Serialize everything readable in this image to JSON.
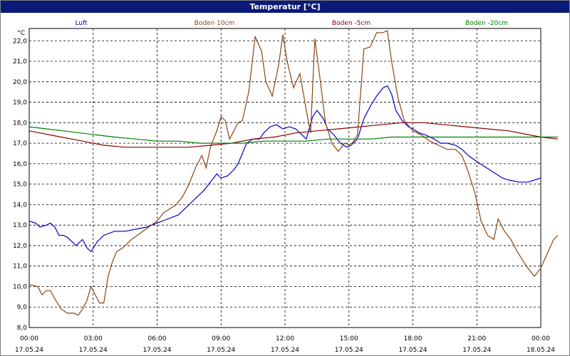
{
  "window": {
    "title": "Temperatur [°C]"
  },
  "chart_data": {
    "type": "line",
    "title": "Temperatur [°C]",
    "ylabel": "°C",
    "ylim": [
      8.0,
      22.6
    ],
    "y_ticks": [
      "8,0",
      "9,0",
      "10,0",
      "11,0",
      "12,0",
      "13,0",
      "14,0",
      "15,0",
      "16,0",
      "17,0",
      "18,0",
      "19,0",
      "20,0",
      "21,0",
      "22,0"
    ],
    "x_ticks": [
      {
        "time": "00:00",
        "date": "17.05.24"
      },
      {
        "time": "03:00",
        "date": "17.05.24"
      },
      {
        "time": "06:00",
        "date": "17.05.24"
      },
      {
        "time": "09:00",
        "date": "17.05.24"
      },
      {
        "time": "12:00",
        "date": "17.05.24"
      },
      {
        "time": "15:00",
        "date": "17.05.24"
      },
      {
        "time": "18:00",
        "date": "17.05.24"
      },
      {
        "time": "21:00",
        "date": "17.05.24"
      },
      {
        "time": "00:00",
        "date": "18.05.24"
      }
    ],
    "x_unit": "hours",
    "xlim": [
      0,
      24
    ],
    "grid": true,
    "legend_position": "top",
    "series": [
      {
        "name": "Luft",
        "color": "#0000cc",
        "points": [
          [
            0,
            13.2
          ],
          [
            0.3,
            13.1
          ],
          [
            0.5,
            12.9
          ],
          [
            0.8,
            13.0
          ],
          [
            1.0,
            13.1
          ],
          [
            1.2,
            12.9
          ],
          [
            1.4,
            12.5
          ],
          [
            1.6,
            12.5
          ],
          [
            1.8,
            12.4
          ],
          [
            2.0,
            12.2
          ],
          [
            2.2,
            12.0
          ],
          [
            2.5,
            12.3
          ],
          [
            2.7,
            11.9
          ],
          [
            2.9,
            11.7
          ],
          [
            3.2,
            12.2
          ],
          [
            3.5,
            12.5
          ],
          [
            4.0,
            12.7
          ],
          [
            4.5,
            12.7
          ],
          [
            5.0,
            12.8
          ],
          [
            5.5,
            12.9
          ],
          [
            6.0,
            13.1
          ],
          [
            6.5,
            13.3
          ],
          [
            7.0,
            13.5
          ],
          [
            7.3,
            13.8
          ],
          [
            7.6,
            14.1
          ],
          [
            7.9,
            14.4
          ],
          [
            8.2,
            14.7
          ],
          [
            8.5,
            15.1
          ],
          [
            8.8,
            15.5
          ],
          [
            9.0,
            15.3
          ],
          [
            9.3,
            15.4
          ],
          [
            9.6,
            15.7
          ],
          [
            9.8,
            16.0
          ],
          [
            10.0,
            16.5
          ],
          [
            10.2,
            17.0
          ],
          [
            10.5,
            17.2
          ],
          [
            10.8,
            17.2
          ],
          [
            11.0,
            17.5
          ],
          [
            11.3,
            17.8
          ],
          [
            11.6,
            17.9
          ],
          [
            11.9,
            17.7
          ],
          [
            12.2,
            17.8
          ],
          [
            12.5,
            17.7
          ],
          [
            12.8,
            17.4
          ],
          [
            13.0,
            17.2
          ],
          [
            13.3,
            18.3
          ],
          [
            13.5,
            18.6
          ],
          [
            13.8,
            18.2
          ],
          [
            14.0,
            17.7
          ],
          [
            14.3,
            17.4
          ],
          [
            14.6,
            17.0
          ],
          [
            14.9,
            16.8
          ],
          [
            15.1,
            16.9
          ],
          [
            15.4,
            17.2
          ],
          [
            15.7,
            18.2
          ],
          [
            16.0,
            18.8
          ],
          [
            16.3,
            19.3
          ],
          [
            16.6,
            19.7
          ],
          [
            16.8,
            19.8
          ],
          [
            17.0,
            19.4
          ],
          [
            17.2,
            18.6
          ],
          [
            17.5,
            18.1
          ],
          [
            17.8,
            17.8
          ],
          [
            18.0,
            17.7
          ],
          [
            18.3,
            17.5
          ],
          [
            18.6,
            17.4
          ],
          [
            19.0,
            17.2
          ],
          [
            19.3,
            17.0
          ],
          [
            19.6,
            17.0
          ],
          [
            20.0,
            16.9
          ],
          [
            20.3,
            16.7
          ],
          [
            20.6,
            16.4
          ],
          [
            21.0,
            16.1
          ],
          [
            21.3,
            15.9
          ],
          [
            21.6,
            15.7
          ],
          [
            21.9,
            15.5
          ],
          [
            22.2,
            15.3
          ],
          [
            22.5,
            15.2
          ],
          [
            23.0,
            15.1
          ],
          [
            23.4,
            15.1
          ],
          [
            23.7,
            15.2
          ],
          [
            24.0,
            15.3
          ]
        ]
      },
      {
        "name": "Boden 10cm",
        "color": "#8b4513",
        "points": [
          [
            0,
            10.1
          ],
          [
            0.4,
            10.0
          ],
          [
            0.6,
            9.6
          ],
          [
            0.8,
            9.8
          ],
          [
            1.0,
            9.8
          ],
          [
            1.2,
            9.4
          ],
          [
            1.5,
            8.9
          ],
          [
            1.8,
            8.7
          ],
          [
            2.1,
            8.7
          ],
          [
            2.3,
            8.6
          ],
          [
            2.5,
            8.9
          ],
          [
            2.7,
            9.3
          ],
          [
            2.9,
            10.0
          ],
          [
            3.1,
            9.6
          ],
          [
            3.3,
            9.2
          ],
          [
            3.5,
            9.2
          ],
          [
            3.7,
            10.5
          ],
          [
            3.9,
            11.2
          ],
          [
            4.1,
            11.7
          ],
          [
            4.4,
            11.9
          ],
          [
            4.8,
            12.3
          ],
          [
            5.2,
            12.6
          ],
          [
            5.6,
            12.9
          ],
          [
            6.0,
            13.2
          ],
          [
            6.3,
            13.6
          ],
          [
            6.6,
            13.8
          ],
          [
            6.9,
            14.0
          ],
          [
            7.2,
            14.4
          ],
          [
            7.5,
            15.0
          ],
          [
            7.8,
            15.8
          ],
          [
            8.1,
            16.4
          ],
          [
            8.3,
            15.8
          ],
          [
            8.5,
            16.8
          ],
          [
            8.8,
            17.6
          ],
          [
            9.0,
            18.3
          ],
          [
            9.2,
            18.1
          ],
          [
            9.4,
            17.2
          ],
          [
            9.6,
            17.6
          ],
          [
            9.8,
            18.0
          ],
          [
            10.0,
            18.1
          ],
          [
            10.3,
            19.5
          ],
          [
            10.6,
            22.2
          ],
          [
            10.9,
            21.5
          ],
          [
            11.1,
            20.0
          ],
          [
            11.4,
            19.3
          ],
          [
            11.7,
            20.8
          ],
          [
            11.9,
            22.3
          ],
          [
            12.1,
            21.0
          ],
          [
            12.4,
            19.7
          ],
          [
            12.7,
            20.4
          ],
          [
            13.0,
            18.6
          ],
          [
            13.2,
            17.5
          ],
          [
            13.4,
            22.1
          ],
          [
            13.6,
            20.5
          ],
          [
            13.9,
            18.0
          ],
          [
            14.2,
            17.0
          ],
          [
            14.5,
            16.6
          ],
          [
            14.8,
            17.0
          ],
          [
            15.1,
            16.9
          ],
          [
            15.4,
            17.4
          ],
          [
            15.7,
            21.6
          ],
          [
            16.0,
            21.7
          ],
          [
            16.3,
            22.4
          ],
          [
            16.6,
            22.4
          ],
          [
            16.8,
            22.5
          ],
          [
            17.0,
            21.0
          ],
          [
            17.3,
            19.2
          ],
          [
            17.6,
            18.1
          ],
          [
            18.0,
            17.6
          ],
          [
            18.4,
            17.4
          ],
          [
            18.8,
            17.1
          ],
          [
            19.2,
            16.9
          ],
          [
            19.6,
            16.7
          ],
          [
            20.0,
            16.7
          ],
          [
            20.3,
            16.4
          ],
          [
            20.6,
            15.6
          ],
          [
            20.9,
            14.6
          ],
          [
            21.2,
            13.2
          ],
          [
            21.5,
            12.5
          ],
          [
            21.8,
            12.3
          ],
          [
            22.0,
            13.3
          ],
          [
            22.3,
            12.7
          ],
          [
            22.6,
            12.3
          ],
          [
            22.9,
            11.7
          ],
          [
            23.2,
            11.2
          ],
          [
            23.4,
            10.9
          ],
          [
            23.7,
            10.5
          ],
          [
            24.0,
            10.9
          ],
          [
            24.3,
            11.6
          ],
          [
            24.6,
            12.3
          ],
          [
            24.8,
            12.5
          ]
        ]
      },
      {
        "name": "Boden -5cm",
        "color": "#8b0000",
        "points": [
          [
            0,
            17.6
          ],
          [
            0.5,
            17.5
          ],
          [
            1.0,
            17.4
          ],
          [
            1.5,
            17.3
          ],
          [
            2.0,
            17.2
          ],
          [
            2.5,
            17.1
          ],
          [
            3.0,
            17.0
          ],
          [
            3.5,
            16.9
          ],
          [
            4.5,
            16.8
          ],
          [
            6.0,
            16.8
          ],
          [
            7.5,
            16.8
          ],
          [
            8.5,
            16.9
          ],
          [
            9.5,
            17.0
          ],
          [
            10.5,
            17.2
          ],
          [
            11.5,
            17.3
          ],
          [
            12.5,
            17.5
          ],
          [
            13.5,
            17.6
          ],
          [
            14.5,
            17.7
          ],
          [
            15.5,
            17.8
          ],
          [
            16.5,
            17.9
          ],
          [
            17.5,
            18.0
          ],
          [
            18.5,
            18.0
          ],
          [
            19.5,
            17.9
          ],
          [
            20.5,
            17.8
          ],
          [
            21.5,
            17.7
          ],
          [
            22.5,
            17.6
          ],
          [
            23.5,
            17.4
          ],
          [
            24.0,
            17.3
          ],
          [
            24.8,
            17.2
          ]
        ]
      },
      {
        "name": "Boden -20cm",
        "color": "#008000",
        "points": [
          [
            0,
            17.8
          ],
          [
            0.8,
            17.7
          ],
          [
            1.6,
            17.6
          ],
          [
            2.4,
            17.5
          ],
          [
            3.2,
            17.4
          ],
          [
            4.0,
            17.3
          ],
          [
            5.0,
            17.2
          ],
          [
            6.0,
            17.1
          ],
          [
            7.0,
            17.1
          ],
          [
            8.0,
            17.0
          ],
          [
            9.0,
            17.0
          ],
          [
            10.0,
            17.0
          ],
          [
            11.0,
            17.1
          ],
          [
            12.0,
            17.1
          ],
          [
            13.0,
            17.1
          ],
          [
            14.0,
            17.2
          ],
          [
            15.0,
            17.2
          ],
          [
            16.0,
            17.2
          ],
          [
            17.0,
            17.3
          ],
          [
            18.0,
            17.3
          ],
          [
            19.0,
            17.3
          ],
          [
            20.0,
            17.3
          ],
          [
            21.0,
            17.3
          ],
          [
            22.0,
            17.3
          ],
          [
            23.0,
            17.3
          ],
          [
            24.0,
            17.3
          ],
          [
            24.8,
            17.3
          ]
        ]
      }
    ]
  }
}
